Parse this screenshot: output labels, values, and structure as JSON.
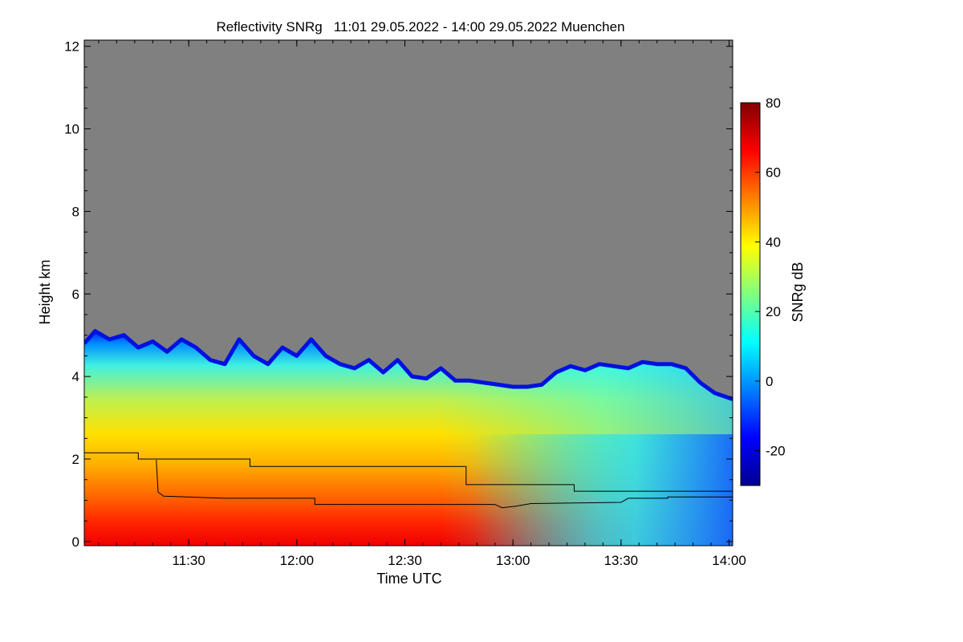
{
  "chart_data": {
    "type": "heatmap",
    "title": "Reflectivity SNRg   11:01 29.05.2022 - 14:00 29.05.2022 Muenchen",
    "xlabel": "Time UTC",
    "ylabel": "Height km",
    "colorbar_label": "SNRg dB",
    "x_range_minutes": [
      661,
      841
    ],
    "y_range_km": [
      -0.1,
      12.15
    ],
    "x_ticks": [
      {
        "value": 690,
        "label": "11:30"
      },
      {
        "value": 720,
        "label": "12:00"
      },
      {
        "value": 750,
        "label": "12:30"
      },
      {
        "value": 780,
        "label": "13:00"
      },
      {
        "value": 810,
        "label": "13:30"
      },
      {
        "value": 840,
        "label": "14:00"
      }
    ],
    "y_ticks": [
      {
        "value": 0,
        "label": "0"
      },
      {
        "value": 2,
        "label": "2"
      },
      {
        "value": 4,
        "label": "4"
      },
      {
        "value": 6,
        "label": "6"
      },
      {
        "value": 8,
        "label": "8"
      },
      {
        "value": 10,
        "label": "10"
      },
      {
        "value": 12,
        "label": "12"
      }
    ],
    "colorbar_range": [
      -30,
      80
    ],
    "colorbar_ticks": [
      {
        "value": 80,
        "label": "80"
      },
      {
        "value": 60,
        "label": "60"
      },
      {
        "value": 40,
        "label": "40"
      },
      {
        "value": 20,
        "label": "20"
      },
      {
        "value": 0,
        "label": "0"
      },
      {
        "value": -20,
        "label": "-20"
      }
    ],
    "no_signal_color": "#808080",
    "echo_top_km": [
      [
        661,
        4.8
      ],
      [
        664,
        5.1
      ],
      [
        668,
        4.9
      ],
      [
        672,
        5.0
      ],
      [
        676,
        4.7
      ],
      [
        680,
        4.85
      ],
      [
        684,
        4.6
      ],
      [
        688,
        4.9
      ],
      [
        692,
        4.7
      ],
      [
        696,
        4.4
      ],
      [
        700,
        4.3
      ],
      [
        704,
        4.9
      ],
      [
        708,
        4.5
      ],
      [
        712,
        4.3
      ],
      [
        716,
        4.7
      ],
      [
        720,
        4.5
      ],
      [
        724,
        4.9
      ],
      [
        728,
        4.5
      ],
      [
        732,
        4.3
      ],
      [
        736,
        4.2
      ],
      [
        740,
        4.4
      ],
      [
        744,
        4.1
      ],
      [
        748,
        4.4
      ],
      [
        752,
        4.0
      ],
      [
        756,
        3.95
      ],
      [
        760,
        4.2
      ],
      [
        764,
        3.9
      ],
      [
        768,
        3.9
      ],
      [
        772,
        3.85
      ],
      [
        776,
        3.8
      ],
      [
        780,
        3.75
      ],
      [
        784,
        3.75
      ],
      [
        788,
        3.8
      ],
      [
        792,
        4.1
      ],
      [
        796,
        4.25
      ],
      [
        800,
        4.15
      ],
      [
        804,
        4.3
      ],
      [
        808,
        4.25
      ],
      [
        812,
        4.2
      ],
      [
        816,
        4.35
      ],
      [
        820,
        4.3
      ],
      [
        824,
        4.3
      ],
      [
        828,
        4.2
      ],
      [
        832,
        3.85
      ],
      [
        836,
        3.6
      ],
      [
        841,
        3.45
      ]
    ],
    "series": [
      {
        "name": "upper boundary layer line",
        "points": [
          [
            661,
            2.15
          ],
          [
            676,
            2.15
          ],
          [
            676,
            2.0
          ],
          [
            707,
            2.0
          ],
          [
            707,
            1.82
          ],
          [
            767,
            1.82
          ],
          [
            767,
            1.38
          ],
          [
            797,
            1.38
          ],
          [
            797,
            1.22
          ],
          [
            841,
            1.22
          ]
        ]
      },
      {
        "name": "lower boundary layer line",
        "points": [
          [
            681,
            1.98
          ],
          [
            681.5,
            1.2
          ],
          [
            683,
            1.1
          ],
          [
            700,
            1.05
          ],
          [
            725,
            1.05
          ],
          [
            725,
            0.9
          ],
          [
            775,
            0.9
          ],
          [
            777,
            0.82
          ],
          [
            781,
            0.86
          ],
          [
            785,
            0.92
          ],
          [
            810,
            0.95
          ],
          [
            812,
            1.05
          ],
          [
            823,
            1.05
          ],
          [
            823,
            1.08
          ],
          [
            841,
            1.08
          ]
        ]
      }
    ]
  }
}
